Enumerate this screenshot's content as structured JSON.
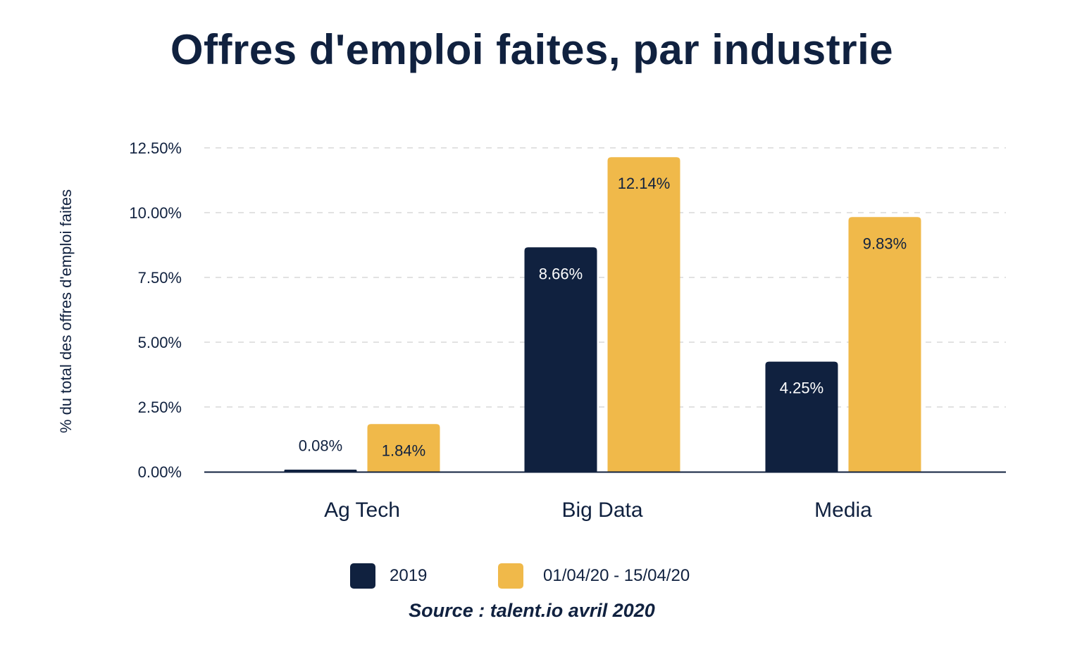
{
  "title": "Offres d'emploi faites, par industrie",
  "source": "Source : talent.io avril 2020",
  "colors": {
    "series_2019": "#10213f",
    "series_2020": "#f0b94a",
    "text": "#10213f",
    "grid": "#d9d9d9"
  },
  "chart_data": {
    "type": "bar",
    "title": "Offres d'emploi faites, par industrie",
    "xlabel": "",
    "ylabel": "% du total des offres d'emploi faites",
    "categories": [
      "Ag Tech",
      "Big Data",
      "Media"
    ],
    "series": [
      {
        "name": "2019",
        "values": [
          0.08,
          8.66,
          4.25
        ],
        "labels": [
          "0.08%",
          "8.66%",
          "4.25%"
        ]
      },
      {
        "name": "01/04/20 - 15/04/20",
        "values": [
          1.84,
          12.14,
          9.83
        ],
        "labels": [
          "1.84%",
          "12.14%",
          "9.83%"
        ]
      }
    ],
    "ylim": [
      0,
      12.5
    ],
    "yticks": [
      0,
      2.5,
      5,
      7.5,
      10,
      12.5
    ],
    "ytick_labels": [
      "0.00%",
      "2.50%",
      "5.00%",
      "7.50%",
      "10.00%",
      "12.50%"
    ],
    "grid": true,
    "legend_position": "bottom-center"
  },
  "legend": {
    "items": [
      {
        "label": "2019"
      },
      {
        "label": "01/04/20 - 15/04/20"
      }
    ]
  }
}
